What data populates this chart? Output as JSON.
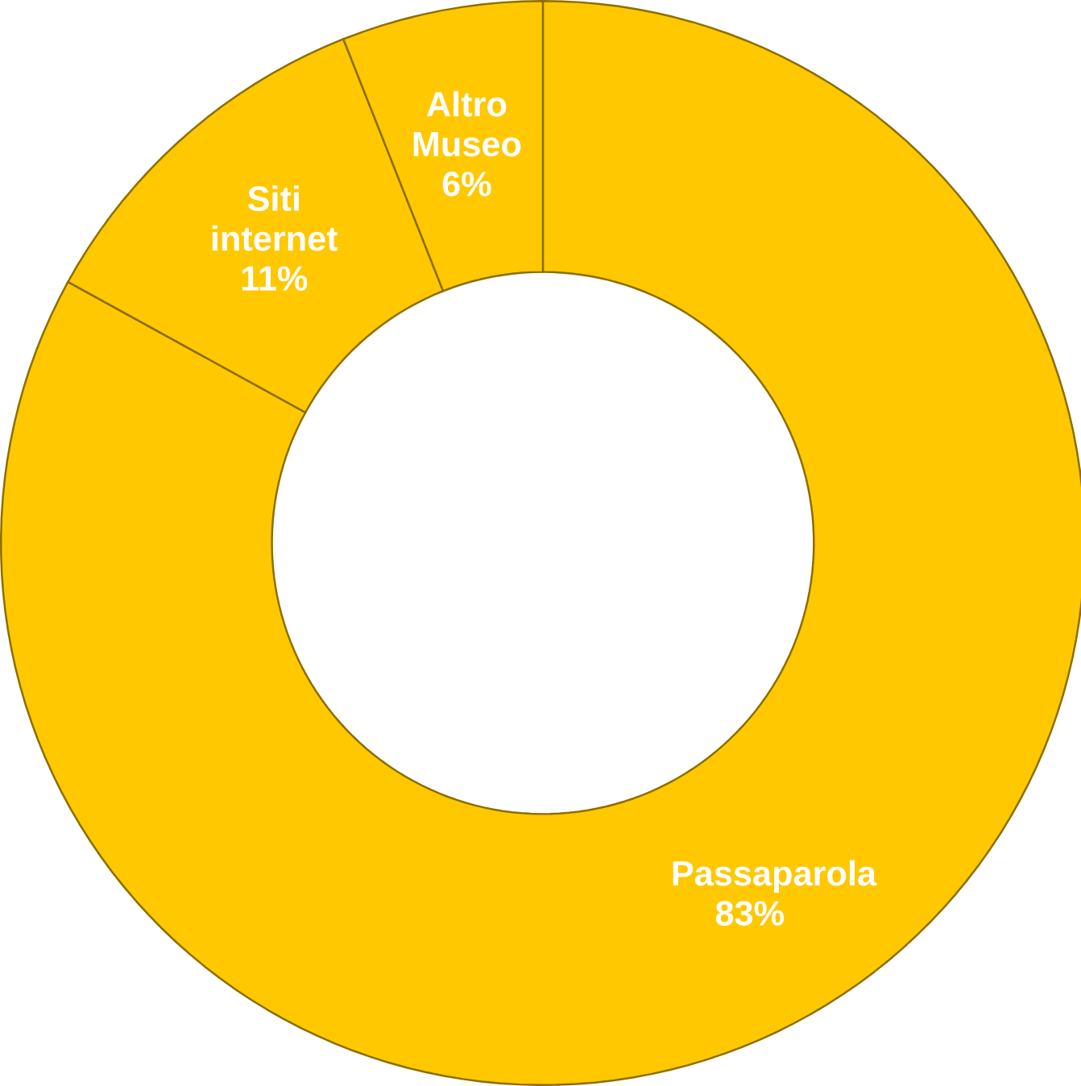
{
  "chart_data": {
    "type": "donut",
    "categories": [
      "Passaparola",
      "Siti internet",
      "Altro Museo"
    ],
    "values": [
      83,
      11,
      6
    ],
    "value_labels": [
      "83%",
      "11%",
      "6%"
    ],
    "colors": [
      "#ffc800",
      "#ffc800",
      "#ffc800"
    ]
  }
}
